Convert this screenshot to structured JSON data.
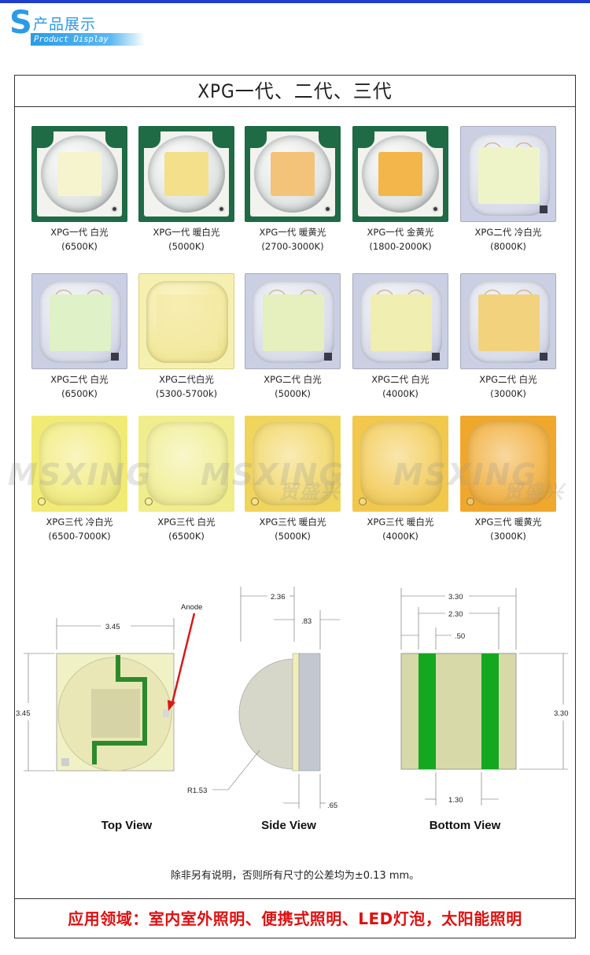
{
  "header": {
    "letter": "S",
    "title_cn": "产品展示",
    "title_en": "Product Display"
  },
  "frame_title": "XPG一代、二代、三代",
  "products": [
    {
      "line1": "XPG一代 白光",
      "line2": "(6500K)",
      "die_color": "#f6f4cf"
    },
    {
      "line1": "XPG一代 暖白光",
      "line2": "(5000K)",
      "die_color": "#f4df8a"
    },
    {
      "line1": "XPG一代 暖黄光",
      "line2": "(2700-3000K)",
      "die_color": "#f2c378"
    },
    {
      "line1": "XPG一代 金黄光",
      "line2": "(1800-2000K)",
      "die_color": "#f2b64a"
    },
    {
      "line1": "XPG二代 冷白光",
      "line2": "(8000K)",
      "die_color": "#eef4c8"
    },
    {
      "line1": "XPG二代 白光",
      "line2": "(6500K)",
      "die_color": "#dff1c6"
    },
    {
      "line1": "XPG二代白光",
      "line2": "(5300-5700k)",
      "die_color": "#f4eaa4"
    },
    {
      "line1": "XPG二代 白光",
      "line2": "(5000K)",
      "die_color": "#e6efbe"
    },
    {
      "line1": "XPG二代 白光",
      "line2": "(4000K)",
      "die_color": "#f0eeb0"
    },
    {
      "line1": "XPG二代 白光",
      "line2": "(3000K)",
      "die_color": "#f3d27e"
    },
    {
      "line1": "XPG三代 冷白光",
      "line2": "(6500-7000K)",
      "die_color": "#f1ea74"
    },
    {
      "line1": "XPG三代 白光",
      "line2": "(6500K)",
      "die_color": "#f0ed8c"
    },
    {
      "line1": "XPG三代 暖白光",
      "line2": "(5000K)",
      "die_color": "#f1d45c"
    },
    {
      "line1": "XPG三代 暖白光",
      "line2": "(4000K)",
      "die_color": "#f2c84c"
    },
    {
      "line1": "XPG三代 暖黄光",
      "line2": "(3000K)",
      "die_color": "#f0a82c"
    }
  ],
  "watermark": {
    "brand": "MSXING",
    "cn": "贸盛兴"
  },
  "diagrams": {
    "top": {
      "label": "Top View",
      "width": "3.45",
      "height": "3.45",
      "anode": "Anode"
    },
    "side": {
      "label": "Side View",
      "length": "2.36",
      "thickness": ".83",
      "base": ".65",
      "radius": "R1.53"
    },
    "bottom": {
      "label": "Bottom View",
      "width": "3.30",
      "inner": "2.30",
      "pad": ".50",
      "height": "3.30",
      "gap": "1.30"
    }
  },
  "note": "除非另有说明，否则所有尺寸的公差均为±0.13 mm。",
  "application": "应用领域：室内室外照明、便携式照明、LED灯泡，太阳能照明"
}
